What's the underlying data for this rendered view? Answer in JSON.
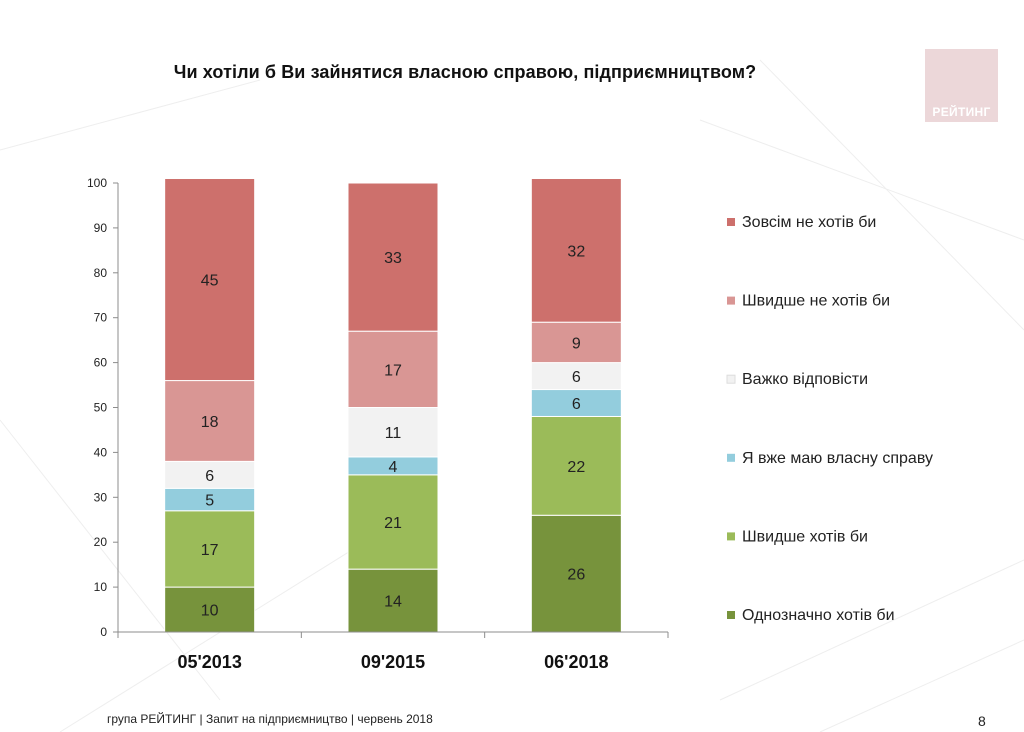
{
  "title": "Чи хотіли б Ви зайнятися власною справою, підприємництвом?",
  "logo": {
    "text": "РЕЙТИНГ",
    "color": "#ecd7d9"
  },
  "footer": "група РЕЙТИНГ | Запит на підприємництво | червень  2018",
  "page_number": "8",
  "chart_data": {
    "type": "bar",
    "stacked": true,
    "categories": [
      "05'2013",
      "09'2015",
      "06'2018"
    ],
    "ylim": [
      0,
      100
    ],
    "yticks": [
      0,
      10,
      20,
      30,
      40,
      50,
      60,
      70,
      80,
      90,
      100
    ],
    "grid": false,
    "legend_position": "right",
    "series": [
      {
        "name": "Однозначно хотів би",
        "color": "#77933c",
        "values": [
          10,
          14,
          26
        ]
      },
      {
        "name": "Швидше хотів би",
        "color": "#9bbb59",
        "values": [
          17,
          21,
          22
        ]
      },
      {
        "name": "Я вже маю власну справу",
        "color": "#93cddd",
        "values": [
          5,
          4,
          6
        ]
      },
      {
        "name": "Важко відповісти",
        "color": "#f2f2f2",
        "values": [
          6,
          11,
          6
        ]
      },
      {
        "name": "Швидше не хотів би",
        "color": "#d99694",
        "values": [
          18,
          17,
          9
        ]
      },
      {
        "name": "Зовсім не хотів би",
        "color": "#cd706c",
        "values": [
          45,
          33,
          32
        ]
      }
    ]
  }
}
